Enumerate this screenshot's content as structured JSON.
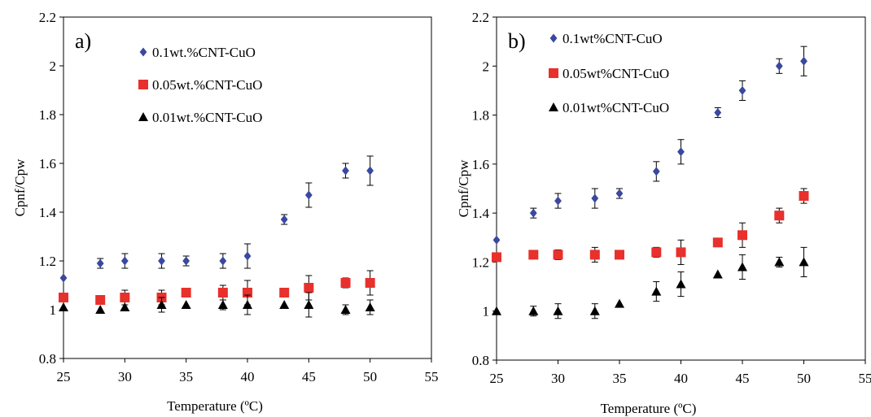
{
  "chart_data": [
    {
      "panel_label": "a)",
      "type": "scatter",
      "xlabel": "Temperature (ºC)",
      "ylabel": "Cpnf/Cpw",
      "xlim": [
        25,
        55
      ],
      "ylim": [
        0.8,
        2.2
      ],
      "xticks": [
        "25",
        "30",
        "35",
        "40",
        "45",
        "50",
        "55"
      ],
      "yticks": [
        "0.8",
        "1",
        "1.2",
        "1.4",
        "1.6",
        "1.8",
        "2",
        "2.2"
      ],
      "grid": false,
      "legend_position": "top-left",
      "series": [
        {
          "name": "0.1wt.%CNT-CuO",
          "marker": "diamond",
          "color": "#3b48a0",
          "x": [
            25,
            28,
            30,
            33,
            35,
            38,
            40,
            43,
            45,
            48,
            50
          ],
          "y": [
            1.13,
            1.19,
            1.2,
            1.2,
            1.2,
            1.2,
            1.22,
            1.37,
            1.47,
            1.57,
            1.57
          ],
          "err": [
            0.0,
            0.02,
            0.03,
            0.03,
            0.02,
            0.03,
            0.05,
            0.02,
            0.05,
            0.03,
            0.06
          ]
        },
        {
          "name": "0.05wt.%CNT-CuO",
          "marker": "square",
          "color": "#e8302c",
          "x": [
            25,
            28,
            30,
            33,
            35,
            38,
            40,
            43,
            45,
            48,
            50
          ],
          "y": [
            1.05,
            1.04,
            1.05,
            1.05,
            1.07,
            1.07,
            1.07,
            1.07,
            1.09,
            1.11,
            1.11
          ],
          "err": [
            0.0,
            0.0,
            0.03,
            0.03,
            0.0,
            0.03,
            0.05,
            0.0,
            0.05,
            0.02,
            0.05
          ]
        },
        {
          "name": "0.01wt.%CNT-CuO",
          "marker": "triangle",
          "color": "#000000",
          "x": [
            25,
            28,
            30,
            33,
            35,
            38,
            40,
            43,
            45,
            48,
            50
          ],
          "y": [
            1.01,
            1.0,
            1.01,
            1.02,
            1.02,
            1.02,
            1.02,
            1.02,
            1.02,
            1.0,
            1.01
          ],
          "err": [
            0.0,
            0.0,
            0.0,
            0.03,
            0.0,
            0.02,
            0.04,
            0.0,
            0.05,
            0.02,
            0.03
          ]
        }
      ]
    },
    {
      "panel_label": "b)",
      "type": "scatter",
      "xlabel": "Temperature (ºC)",
      "ylabel": "Cpnf/Cpw",
      "xlim": [
        25,
        55
      ],
      "ylim": [
        0.8,
        2.2
      ],
      "xticks": [
        "25",
        "30",
        "35",
        "40",
        "45",
        "50",
        "55"
      ],
      "yticks": [
        "0.8",
        "1",
        "1.2",
        "1.4",
        "1.6",
        "1.8",
        "2",
        "2.2"
      ],
      "grid": false,
      "legend_position": "top-left",
      "series": [
        {
          "name": "0.1wt%CNT-CuO",
          "marker": "diamond",
          "color": "#3b48a0",
          "x": [
            25,
            28,
            30,
            33,
            35,
            38,
            40,
            43,
            45,
            48,
            50
          ],
          "y": [
            1.29,
            1.4,
            1.45,
            1.46,
            1.48,
            1.57,
            1.65,
            1.81,
            1.9,
            2.0,
            2.02
          ],
          "err": [
            0.0,
            0.02,
            0.03,
            0.04,
            0.02,
            0.04,
            0.05,
            0.02,
            0.04,
            0.03,
            0.06
          ]
        },
        {
          "name": "0.05wt%CNT-CuO",
          "marker": "square",
          "color": "#e8302c",
          "x": [
            25,
            28,
            30,
            33,
            35,
            38,
            40,
            43,
            45,
            48,
            50
          ],
          "y": [
            1.22,
            1.23,
            1.23,
            1.23,
            1.23,
            1.24,
            1.24,
            1.28,
            1.31,
            1.39,
            1.47
          ],
          "err": [
            0.0,
            0.0,
            0.02,
            0.03,
            0.0,
            0.02,
            0.05,
            0.0,
            0.05,
            0.03,
            0.03
          ]
        },
        {
          "name": "0.01wt%CNT-CuO",
          "marker": "triangle",
          "color": "#000000",
          "x": [
            25,
            28,
            30,
            33,
            35,
            38,
            40,
            43,
            45,
            48,
            50
          ],
          "y": [
            1.0,
            1.0,
            1.0,
            1.0,
            1.03,
            1.08,
            1.11,
            1.15,
            1.18,
            1.2,
            1.2
          ],
          "err": [
            0.0,
            0.02,
            0.03,
            0.03,
            0.0,
            0.04,
            0.05,
            0.0,
            0.05,
            0.02,
            0.06
          ]
        }
      ]
    }
  ]
}
